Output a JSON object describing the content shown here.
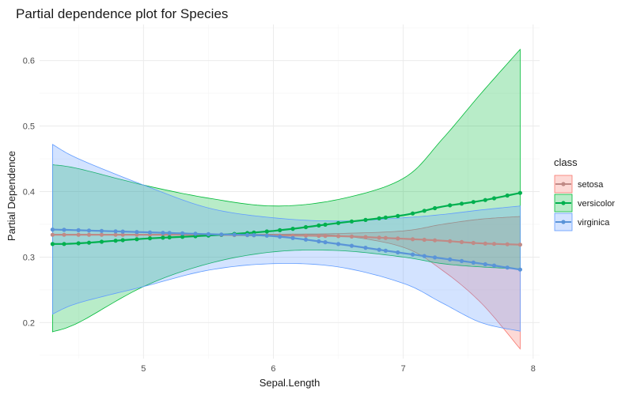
{
  "chart_data": {
    "type": "line",
    "title": "Partial dependence plot for Species",
    "xlabel": "Sepal.Length",
    "ylabel": "Partial Dependence",
    "xlim": [
      4.2,
      8.05
    ],
    "ylim": [
      0.145,
      0.655
    ],
    "x_ticks": [
      5,
      6,
      7,
      8
    ],
    "y_ticks": [
      0.2,
      0.3,
      0.4,
      0.5,
      0.6
    ],
    "grid": true,
    "legend_position": "right",
    "legend_title": "class",
    "series": [
      {
        "name": "setosa",
        "color": "#F8766D",
        "line_color": "#C08A86",
        "x": [
          4.3,
          4.5,
          5.0,
          5.5,
          6.0,
          6.5,
          7.0,
          7.3,
          7.6,
          7.9
        ],
        "values": [
          0.334,
          0.334,
          0.334,
          0.334,
          0.333,
          0.332,
          0.328,
          0.325,
          0.321,
          0.319
        ],
        "lower": [
          0.335,
          0.335,
          0.335,
          0.335,
          0.334,
          0.333,
          0.315,
          0.28,
          0.23,
          0.16
        ],
        "upper": [
          0.335,
          0.335,
          0.335,
          0.335,
          0.335,
          0.336,
          0.34,
          0.35,
          0.358,
          0.362
        ]
      },
      {
        "name": "versicolor",
        "color": "#00BA38",
        "line_color": "#00B04F",
        "x": [
          4.3,
          4.5,
          5.0,
          5.5,
          6.0,
          6.5,
          7.0,
          7.3,
          7.6,
          7.9
        ],
        "values": [
          0.32,
          0.321,
          0.328,
          0.333,
          0.34,
          0.352,
          0.364,
          0.377,
          0.386,
          0.398
        ],
        "lower": [
          0.186,
          0.2,
          0.255,
          0.29,
          0.308,
          0.31,
          0.3,
          0.29,
          0.285,
          0.282
        ],
        "upper": [
          0.441,
          0.435,
          0.41,
          0.39,
          0.378,
          0.388,
          0.42,
          0.48,
          0.55,
          0.617
        ]
      },
      {
        "name": "virginica",
        "color": "#619CFF",
        "line_color": "#5A94D8",
        "x": [
          4.3,
          4.5,
          5.0,
          5.5,
          6.0,
          6.5,
          7.0,
          7.3,
          7.6,
          7.9
        ],
        "values": [
          0.342,
          0.341,
          0.338,
          0.335,
          0.332,
          0.32,
          0.306,
          0.298,
          0.29,
          0.281
        ],
        "lower": [
          0.213,
          0.23,
          0.255,
          0.28,
          0.29,
          0.285,
          0.26,
          0.23,
          0.2,
          0.187
        ],
        "upper": [
          0.472,
          0.45,
          0.41,
          0.375,
          0.36,
          0.355,
          0.36,
          0.365,
          0.372,
          0.378
        ]
      }
    ]
  }
}
